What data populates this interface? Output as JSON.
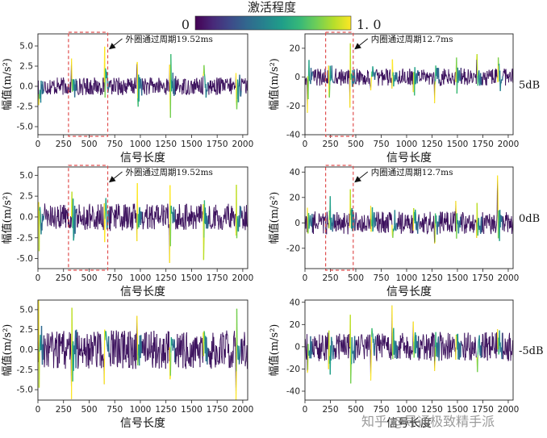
{
  "colorbar": {
    "title": "激活程度",
    "min_label": "0",
    "max_label": "1. 0",
    "colormap": "viridis",
    "colors": [
      "#440154",
      "#482878",
      "#3e4989",
      "#31688e",
      "#26828e",
      "#1f9e89",
      "#35b779",
      "#6ece58",
      "#b5de2b",
      "#fde725"
    ]
  },
  "watermark": "知乎 @导通极致精手派",
  "trace_color": "#3a0f5c",
  "chart_data": [
    {
      "type": "line",
      "xlabel": "信号长度",
      "ylabel": "幅值(m/s²)",
      "xlim": [
        0,
        2048
      ],
      "ylim": [
        -6,
        6.5
      ],
      "xticks": [
        0,
        250,
        500,
        750,
        1000,
        1250,
        1500,
        1750,
        2000
      ],
      "xticklabels": [
        "0",
        "250",
        "500",
        "750",
        "1000",
        "1250",
        "1500",
        "1750",
        "2000"
      ],
      "yticks": [
        -5,
        -2.5,
        0,
        2.5,
        5
      ],
      "yticklabels": [
        "-5.0",
        "-2.5",
        "0.0",
        "2.5",
        "5.0"
      ],
      "impulse_x": [
        8,
        330,
        650,
        970,
        1290,
        1615,
        1935
      ],
      "impulse_amp": [
        5.5,
        6.0,
        5.6,
        5.4,
        5.8,
        5.2,
        5.5
      ],
      "noise_amp": 1.1,
      "highlight": [
        330,
        650
      ],
      "annotation": "外圈通过周期19.52ms",
      "row_label": "5dB"
    },
    {
      "type": "line",
      "xlabel": "信号长度",
      "ylabel": "幅值(m/s²)",
      "xlim": [
        0,
        2048
      ],
      "ylim": [
        -40,
        30
      ],
      "xticks": [
        0,
        250,
        500,
        750,
        1000,
        1250,
        1500,
        1750,
        2000
      ],
      "xticklabels": [
        "0",
        "250",
        "500",
        "750",
        "1000",
        "1250",
        "1500",
        "1750",
        "2000"
      ],
      "yticks": [
        -40,
        -20,
        0,
        20
      ],
      "yticklabels": [
        "-40",
        "-20",
        "0",
        "20"
      ],
      "impulse_x": [
        25,
        235,
        443,
        650,
        860,
        1068,
        1275,
        1485,
        1690,
        1897
      ],
      "impulse_amp": [
        24,
        26,
        24,
        20,
        18,
        16,
        18,
        22,
        20,
        34
      ],
      "noise_amp": 6,
      "highlight": [
        235,
        443
      ],
      "annotation": "内圈通过周期12.7ms"
    },
    {
      "type": "line",
      "xlabel": "信号长度",
      "ylabel": "幅值(m/s²)",
      "xlim": [
        0,
        2048
      ],
      "ylim": [
        -6.2,
        6
      ],
      "xticks": [
        0,
        250,
        500,
        750,
        1000,
        1250,
        1500,
        1750,
        2000
      ],
      "xticklabels": [
        "0",
        "250",
        "500",
        "750",
        "1000",
        "1250",
        "1500",
        "1750",
        "2000"
      ],
      "yticks": [
        -5,
        -2.5,
        0,
        2.5,
        5
      ],
      "yticklabels": [
        "-5.0",
        "-2.5",
        "0.0",
        "2.5",
        "5.0"
      ],
      "impulse_x": [
        8,
        330,
        650,
        970,
        1290,
        1615,
        1935
      ],
      "impulse_amp": [
        5.2,
        5.8,
        5.0,
        4.6,
        4.8,
        4.6,
        5.0
      ],
      "noise_amp": 1.6,
      "highlight": [
        330,
        650
      ],
      "annotation": "外圈通过周期19.52ms",
      "row_label": "0dB"
    },
    {
      "type": "line",
      "xlabel": "信号长度",
      "ylabel": "幅值(m/s²)",
      "xlim": [
        0,
        2048
      ],
      "ylim": [
        -36,
        44
      ],
      "xticks": [
        0,
        250,
        500,
        750,
        1000,
        1250,
        1500,
        1750,
        2000
      ],
      "xticklabels": [
        "0",
        "250",
        "500",
        "750",
        "1000",
        "1250",
        "1500",
        "1750",
        "2000"
      ],
      "yticks": [
        -20,
        0,
        20,
        40
      ],
      "yticklabels": [
        "-20",
        "0",
        "20",
        "40"
      ],
      "impulse_x": [
        25,
        235,
        443,
        650,
        860,
        1068,
        1275,
        1485,
        1690,
        1897
      ],
      "impulse_amp": [
        28,
        40,
        30,
        18,
        16,
        16,
        18,
        22,
        24,
        30
      ],
      "noise_amp": 9,
      "highlight": [
        235,
        443
      ],
      "annotation": "内圈通过周期12.7ms"
    },
    {
      "type": "line",
      "xlabel": "信号长度",
      "ylabel": "幅值(m/s²)",
      "xlim": [
        0,
        2048
      ],
      "ylim": [
        -6.3,
        6.2
      ],
      "xticks": [
        0,
        250,
        500,
        750,
        1000,
        1250,
        1500,
        1750,
        2000
      ],
      "xticklabels": [
        "0",
        "250",
        "500",
        "750",
        "1000",
        "1250",
        "1500",
        "1750",
        "2000"
      ],
      "yticks": [
        -5,
        -2.5,
        0,
        2.5,
        5
      ],
      "yticklabels": [
        "-5.0",
        "-2.5",
        "0.0",
        "2.5",
        "5.0"
      ],
      "impulse_x": [
        8,
        330,
        650,
        970,
        1290,
        1615,
        1935
      ],
      "impulse_amp": [
        5.5,
        5.0,
        4.6,
        4.4,
        4.6,
        5.0,
        4.8
      ],
      "noise_amp": 2.4,
      "highlight": null,
      "annotation": "",
      "row_label": "-5dB"
    },
    {
      "type": "line",
      "xlabel": "信号长度",
      "ylabel": "幅值(m/s²)",
      "xlim": [
        0,
        2048
      ],
      "ylim": [
        -48,
        42
      ],
      "xticks": [
        0,
        250,
        500,
        750,
        1000,
        1250,
        1500,
        1750,
        2000
      ],
      "xticklabels": [
        "0",
        "250",
        "500",
        "750",
        "1000",
        "1250",
        "1500",
        "1750",
        "2000"
      ],
      "yticks": [
        -40,
        -20,
        0,
        20,
        40
      ],
      "yticklabels": [
        "-40",
        "-20",
        "0",
        "20",
        "40"
      ],
      "impulse_x": [
        25,
        235,
        443,
        650,
        860,
        1068,
        1275,
        1485,
        1690,
        1897
      ],
      "impulse_amp": [
        30,
        38,
        38,
        28,
        26,
        24,
        28,
        26,
        30,
        28
      ],
      "noise_amp": 13,
      "highlight": null,
      "annotation": ""
    }
  ]
}
